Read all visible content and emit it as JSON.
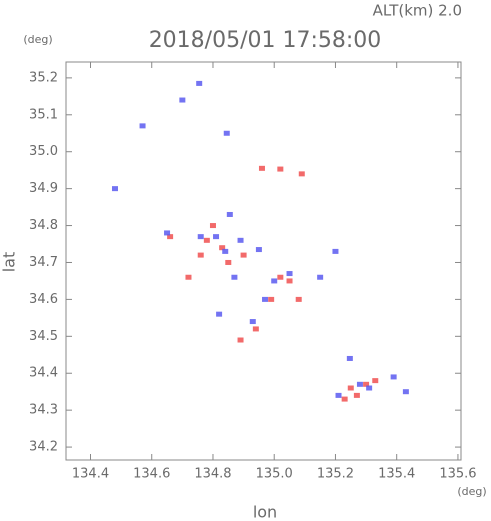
{
  "chart_data": {
    "type": "scatter",
    "title": "2018/05/01 17:58:00",
    "subtitle": "ALT(km) 2.0",
    "y_unit": "(deg)",
    "x_unit": "(deg)",
    "xlabel": "lon",
    "ylabel": "lat",
    "xlim": [
      134.32,
      135.61
    ],
    "ylim": [
      34.165,
      35.243
    ],
    "xticks": [
      134.4,
      134.6,
      134.8,
      {
        "value": 135,
        "label": "135.0"
      },
      135.2,
      135.4,
      135.6
    ],
    "yticks": [
      34.2,
      34.3,
      34.4,
      34.5,
      34.6,
      34.7,
      34.8,
      34.9,
      {
        "value": 35,
        "label": "35.0"
      },
      35.1,
      35.2
    ],
    "series": [
      {
        "color": "#f05050",
        "x": [
          134.96,
          135.02,
          135.09,
          134.78,
          134.83,
          134.9,
          135.05,
          134.99,
          135.08,
          134.94,
          134.89,
          135.27,
          135.23,
          135.3,
          135.33,
          134.76,
          134.72,
          135.02,
          134.8,
          134.66,
          134.85,
          135.25
        ],
        "y": [
          34.955,
          34.953,
          34.94,
          34.76,
          34.74,
          34.72,
          34.65,
          34.6,
          34.6,
          34.52,
          34.49,
          34.34,
          34.33,
          34.37,
          34.38,
          34.72,
          34.66,
          34.66,
          34.8,
          34.77,
          34.7,
          34.36
        ]
      },
      {
        "color": "#5a5af0",
        "x": [
          134.755,
          134.7,
          134.57,
          134.845,
          134.855,
          134.76,
          134.84,
          134.89,
          134.95,
          135.05,
          134.97,
          134.93,
          134.82,
          134.65,
          135.15,
          135.2,
          135.247,
          135.28,
          135.21,
          135.43,
          135.39,
          134.48,
          134.81,
          134.87,
          135.0,
          135.31
        ],
        "y": [
          35.185,
          35.14,
          35.07,
          35.05,
          34.83,
          34.77,
          34.73,
          34.76,
          34.735,
          34.67,
          34.6,
          34.54,
          34.56,
          34.78,
          34.66,
          34.73,
          34.44,
          34.37,
          34.34,
          34.35,
          34.39,
          34.9,
          34.77,
          34.66,
          34.65,
          34.36
        ]
      }
    ]
  }
}
